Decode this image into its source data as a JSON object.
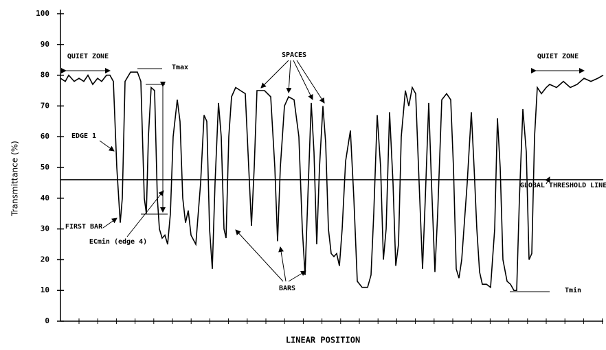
{
  "chart_data": {
    "type": "line",
    "y_label": "Transmittance (%)",
    "x_label": "LINEAR POSITION",
    "ylim": [
      0,
      100
    ],
    "yticks": [
      0,
      10,
      20,
      30,
      40,
      50,
      60,
      70,
      80,
      90,
      100
    ],
    "xlim": [
      0,
      790
    ],
    "threshold": 46,
    "color": "#000000",
    "annotations": [
      "QUIET ZONE",
      "QUIET ZONE",
      "SPACES",
      "EDGE 1",
      "FIRST BAR",
      "ECmin (edge 4)",
      "BARS",
      "GLOBAL THRESHOLD LINE",
      "Tmax",
      "Tmin"
    ],
    "x": [
      0,
      7,
      12,
      20,
      27,
      34,
      40,
      47,
      54,
      60,
      67,
      72,
      77,
      82,
      87,
      90,
      94,
      102,
      112,
      117,
      122,
      125,
      128,
      132,
      137,
      141,
      144,
      148,
      152,
      156,
      160,
      164,
      170,
      174,
      178,
      182,
      186,
      190,
      197,
      204,
      209,
      213,
      217,
      221,
      225,
      230,
      234,
      238,
      241,
      245,
      249,
      255,
      262,
      269,
      274,
      278,
      282,
      286,
      297,
      306,
      312,
      316,
      320,
      326,
      332,
      340,
      347,
      352,
      356,
      360,
      365,
      369,
      373,
      377,
      382,
      386,
      390,
      394,
      398,
      402,
      406,
      410,
      415,
      422,
      427,
      432,
      439,
      447,
      452,
      456,
      461,
      466,
      470,
      474,
      479,
      484,
      488,
      492,
      496,
      502,
      507,
      512,
      517,
      522,
      527,
      531,
      536,
      540,
      545,
      549,
      555,
      562,
      568,
      572,
      576,
      580,
      584,
      592,
      598,
      602,
      606,
      610,
      614,
      620,
      626,
      632,
      636,
      640,
      644,
      650,
      655,
      660,
      664,
      668,
      673,
      678,
      682,
      686,
      690,
      694,
      700,
      707,
      712,
      722,
      732,
      742,
      752,
      762,
      772,
      782,
      790
    ],
    "values": [
      79,
      78,
      80,
      78,
      79,
      78,
      80,
      77,
      79,
      78,
      80,
      80,
      78,
      50,
      32,
      40,
      78,
      81,
      81,
      78,
      40,
      35,
      60,
      76,
      75,
      40,
      30,
      27,
      28,
      25,
      35,
      60,
      72,
      65,
      40,
      32,
      36,
      28,
      25,
      45,
      67,
      65,
      30,
      17,
      45,
      71,
      60,
      30,
      27,
      60,
      73,
      76,
      75,
      74,
      50,
      31,
      50,
      75,
      75,
      73,
      50,
      26,
      50,
      70,
      73,
      72,
      60,
      30,
      15,
      40,
      71,
      55,
      25,
      50,
      70,
      58,
      30,
      22,
      21,
      22,
      18,
      30,
      52,
      62,
      40,
      13,
      11,
      11,
      15,
      35,
      67,
      50,
      20,
      30,
      68,
      45,
      18,
      25,
      60,
      75,
      70,
      76,
      74,
      45,
      17,
      40,
      71,
      45,
      16,
      35,
      72,
      74,
      72,
      50,
      17,
      14,
      20,
      45,
      68,
      50,
      30,
      16,
      12,
      12,
      11,
      30,
      66,
      50,
      20,
      13,
      12,
      10,
      10,
      40,
      69,
      55,
      20,
      22,
      60,
      76,
      74,
      76,
      77,
      76,
      78,
      76,
      77,
      79,
      78,
      79,
      80
    ]
  }
}
